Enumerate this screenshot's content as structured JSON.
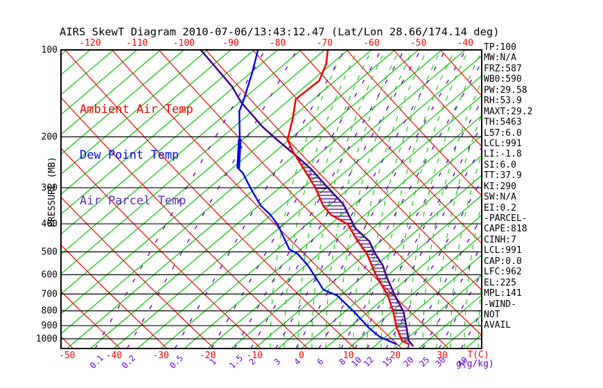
{
  "title": "AIRS SkewT Diagram 2010-07-06/13:43:12.47 (Lat/Lon 28.66/174.14 deg)",
  "legend": {
    "ambient": "Ambient Air Temp",
    "dewpoint": "Dew Point Temp",
    "parcel": "Air Parcel Temp"
  },
  "colors": {
    "red": "#f40000",
    "green": "#00c400",
    "blue": "#0000f0",
    "parcel_purple": "#470094",
    "mix_purple": "#6a00cc",
    "legend_purple": "#5b2db0",
    "black": "#000000"
  },
  "axes": {
    "pressure_label": "PRESSURE (MB)",
    "pressure_ticks": [
      100,
      200,
      300,
      400,
      500,
      600,
      700,
      800,
      900,
      1000
    ],
    "top_temp_ticks": [
      -120,
      -110,
      -100,
      -90,
      -80,
      -70,
      -60,
      -50,
      -40
    ],
    "bottom_temp_ticks": [
      -50,
      -40,
      -30,
      -20,
      -10,
      0,
      10,
      20,
      30
    ],
    "temp_axis_label": "T(C)",
    "mixing_axis_label": "g(g/kg)",
    "mixing_ticks": [
      0.1,
      0.2,
      0.5,
      1,
      1.5,
      2,
      3,
      4,
      6,
      8,
      10,
      12,
      15,
      20,
      25,
      30,
      40
    ],
    "mixing_ticks_tc": [
      -44.0,
      -37.2,
      -27.0,
      -19.2,
      -14.3,
      -10.8,
      -5.5,
      -1.2,
      3.7,
      8.4,
      11.4,
      14.0,
      18.0,
      22.5,
      25.9,
      29.3,
      34.0
    ]
  },
  "stats": [
    "TP:100",
    "MW:N/A",
    "FRZ:587",
    "WB0:590",
    "PW:29.58",
    "RH:53.9",
    "MAXT:29.2",
    "TH:5463",
    "L57:6.0",
    "LCL:991",
    "LI:-1.8",
    "SI:6.0",
    "TT:37.9",
    "KI:290",
    "SW:N/A",
    "EI:0.2",
    "-PARCEL-",
    "CAPE:818",
    "CINH:7",
    "LCL:991",
    "CAP:0.0",
    "LFC:962",
    "EL:225",
    "MPL:141",
    "-WIND-",
    "NOT",
    "AVAIL"
  ],
  "chart_data": {
    "type": "line",
    "chart_kind": "skew-t log-p sounding",
    "title": "AIRS SkewT Diagram 2010-07-06/13:43:12.47 (Lat/Lon 28.66/174.14 deg)",
    "ylabel": "PRESSURE (MB)",
    "xlabel_temp": "T(C)",
    "xlabel_mixing": "g(g/kg)",
    "pressure_range_mb": [
      100,
      1050
    ],
    "surface_temp_axis_range_c": [
      -50,
      38
    ],
    "top_temp_axis_range_c": [
      -125,
      -38
    ],
    "grid": {
      "isotherm_step_c": 5,
      "isotherms": "green solid, skewed up-right",
      "dry_adiabats": "red solid, slanted down-right",
      "moist_adiabats": "green dashed, right half",
      "mixing_ratio_lines": "purple dashed, labeled 0.1-40 g/kg"
    },
    "series": [
      {
        "name": "Ambient Air Temp",
        "color_key": "red",
        "points_p_t": [
          [
            100,
            -69.3
          ],
          [
            112,
            -66.1
          ],
          [
            128,
            -63.4
          ],
          [
            148,
            -63.8
          ],
          [
            172,
            -59.7
          ],
          [
            205,
            -55.3
          ],
          [
            226,
            -51.0
          ],
          [
            246,
            -46.9
          ],
          [
            268,
            -42.8
          ],
          [
            300,
            -37.4
          ],
          [
            347,
            -31.1
          ],
          [
            372,
            -27.3
          ],
          [
            402,
            -21.2
          ],
          [
            456,
            -15.3
          ],
          [
            508,
            -9.8
          ],
          [
            605,
            -2.3
          ],
          [
            708,
            5.1
          ],
          [
            805,
            10.3
          ],
          [
            918,
            15.2
          ],
          [
            1016,
            19.5
          ],
          [
            1045,
            21.9
          ]
        ]
      },
      {
        "name": "Dew Point Temp",
        "color_key": "blue",
        "points_p_t": [
          [
            100,
            -84.2
          ],
          [
            121,
            -79.5
          ],
          [
            151,
            -74.4
          ],
          [
            163,
            -72.8
          ],
          [
            203,
            -65.8
          ],
          [
            257,
            -58.7
          ],
          [
            267,
            -56.5
          ],
          [
            303,
            -50.8
          ],
          [
            347,
            -44.4
          ],
          [
            372,
            -40.2
          ],
          [
            403,
            -36.1
          ],
          [
            490,
            -27.5
          ],
          [
            508,
            -24.6
          ],
          [
            558,
            -19.4
          ],
          [
            612,
            -14.9
          ],
          [
            676,
            -10.1
          ],
          [
            708,
            -5.7
          ],
          [
            805,
            1.9
          ],
          [
            918,
            9.3
          ],
          [
            985,
            13.8
          ],
          [
            1045,
            19.3
          ]
        ]
      },
      {
        "name": "Air Parcel Temp",
        "color_key": "parcel_purple",
        "points_p_t": [
          [
            100,
            -96.4
          ],
          [
            134,
            -80.5
          ],
          [
            152,
            -74.6
          ],
          [
            172,
            -67.8
          ],
          [
            185,
            -63.8
          ],
          [
            205,
            -57.5
          ],
          [
            230,
            -50.2
          ],
          [
            257,
            -43.3
          ],
          [
            300,
            -34.7
          ],
          [
            342,
            -27.3
          ],
          [
            415,
            -18.6
          ],
          [
            459,
            -12.5
          ],
          [
            508,
            -8.0
          ],
          [
            556,
            -3.6
          ],
          [
            612,
            0.3
          ],
          [
            708,
            6.6
          ],
          [
            805,
            12.5
          ],
          [
            918,
            17.3
          ],
          [
            1016,
            20.9
          ],
          [
            1062,
            23.3
          ]
        ]
      }
    ],
    "cape_hatch": {
      "between": [
        "Ambient Air Temp",
        "Air Parcel Temp"
      ],
      "top_p_mb": 225,
      "bottom_p_mb": 1010
    },
    "legend_position": "upper-left inside plot"
  }
}
